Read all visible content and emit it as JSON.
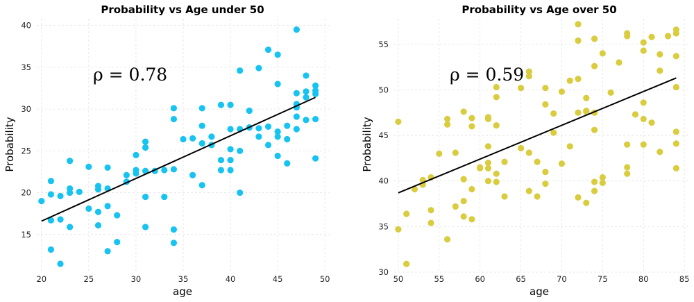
{
  "chart_data": [
    {
      "type": "scatter",
      "title": "Probability vs Age under 50",
      "xlabel": "age",
      "ylabel": "Probability",
      "xlim": [
        19.5,
        50.5
      ],
      "ylim": [
        10.5,
        40.8
      ],
      "xticks": [
        20,
        25,
        30,
        35,
        40,
        45,
        50
      ],
      "yticks": [
        15,
        20,
        25,
        30,
        35,
        40
      ],
      "grid": true,
      "annotation": "ρ = 0.78",
      "point_color": "#17c3f0",
      "trend_line": {
        "x": [
          20,
          49
        ],
        "y": [
          16.6,
          31.4
        ],
        "color": "#000000"
      },
      "x": [
        20,
        21,
        21,
        21,
        21,
        22,
        22,
        22,
        23,
        23,
        23,
        23,
        24,
        25,
        25,
        26,
        26,
        26,
        26,
        27,
        27,
        27,
        27,
        28,
        28,
        29,
        29,
        30,
        30,
        30,
        31,
        31,
        31,
        31,
        31,
        32,
        33,
        33,
        34,
        34,
        34,
        34,
        34,
        35,
        36,
        36,
        37,
        37,
        37,
        37,
        38,
        38,
        39,
        39,
        39,
        40,
        40,
        40,
        40,
        40,
        41,
        41,
        41,
        41,
        42,
        42,
        43,
        43,
        43,
        44,
        44,
        44,
        45,
        45,
        45,
        45,
        45,
        46,
        46,
        46,
        47,
        47,
        47,
        47,
        47,
        47,
        48,
        48,
        48,
        48,
        49,
        49,
        49,
        49,
        49
      ],
      "y": [
        19.0,
        21.4,
        19.8,
        16.7,
        13.2,
        19.6,
        16.8,
        11.5,
        20.5,
        20.0,
        15.9,
        23.8,
        20.1,
        23.1,
        18.1,
        20.8,
        20.4,
        17.7,
        16.1,
        23.0,
        20.5,
        18.4,
        13.0,
        17.3,
        14.1,
        22.1,
        21.3,
        24.5,
        22.7,
        22.3,
        26.1,
        25.4,
        22.6,
        19.5,
        15.9,
        22.6,
        22.7,
        19.5,
        30.1,
        28.8,
        22.8,
        15.6,
        14.0,
        26.4,
        26.5,
        22.1,
        30.1,
        28.0,
        25.9,
        20.9,
        26.7,
        25.7,
        30.5,
        23.9,
        22.7,
        30.5,
        27.6,
        25.2,
        23.9,
        22.7,
        34.6,
        27.6,
        25.0,
        20.0,
        29.8,
        27.8,
        34.9,
        27.7,
        26.7,
        37.1,
        27.9,
        25.7,
        36.5,
        33.0,
        27.3,
        26.7,
        24.4,
        28.0,
        26.4,
        23.5,
        39.5,
        31.9,
        30.6,
        30.2,
        29.1,
        27.6,
        34.0,
        32.1,
        31.4,
        28.7,
        32.8,
        32.2,
        31.8,
        28.8,
        24.1
      ]
    },
    {
      "type": "scatter",
      "title": "Probability vs Age over 50",
      "xlabel": "age",
      "ylabel": "Probability",
      "xlim": [
        49.5,
        85.5
      ],
      "ylim": [
        30.0,
        57.8
      ],
      "xticks": [
        50,
        55,
        60,
        65,
        70,
        75,
        80,
        85
      ],
      "yticks": [
        30,
        35,
        40,
        45,
        50,
        55
      ],
      "grid": true,
      "annotation": "ρ = 0.59",
      "point_color": "#d9cc3f",
      "trend_line": {
        "x": [
          50,
          84
        ],
        "y": [
          38.7,
          51.3
        ],
        "color": "#000000"
      },
      "x": [
        50,
        50,
        51,
        51,
        52,
        53,
        53,
        54,
        54,
        54,
        55,
        56,
        56,
        56,
        57,
        57,
        58,
        58,
        58,
        58,
        59,
        59,
        59,
        59,
        60,
        60,
        61,
        61,
        61,
        61,
        61,
        61,
        62,
        62,
        62,
        62,
        62,
        63,
        63,
        65,
        65,
        66,
        66,
        66,
        66,
        67,
        67,
        68,
        68,
        68,
        68,
        69,
        69,
        70,
        70,
        71,
        71,
        72,
        72,
        72,
        72,
        72,
        73,
        73,
        73,
        73,
        74,
        74,
        74,
        74,
        74,
        74,
        75,
        75,
        75,
        76,
        77,
        78,
        78,
        78,
        78,
        78,
        79,
        80,
        80,
        80,
        80,
        80,
        81,
        81,
        82,
        82,
        82,
        83,
        84,
        84,
        84,
        84,
        84,
        84,
        84
      ],
      "y": [
        46.5,
        34.7,
        36.4,
        30.9,
        39.1,
        40.1,
        39.6,
        40.4,
        36.8,
        35.4,
        43.0,
        46.8,
        46.2,
        33.6,
        43.1,
        37.2,
        47.6,
        40.2,
        37.8,
        36.1,
        46.9,
        46.0,
        39.1,
        35.8,
        41.4,
        41.5,
        47.0,
        46.8,
        43.8,
        42.0,
        41.4,
        40.0,
        50.3,
        49.2,
        46.1,
        40.8,
        39.9,
        42.1,
        38.3,
        50.2,
        43.6,
        52.0,
        51.5,
        43.1,
        38.9,
        42.1,
        38.3,
        50.2,
        48.4,
        41.0,
        39.7,
        47.4,
        45.3,
        49.8,
        41.9,
        51.0,
        43.8,
        57.2,
        55.4,
        51.2,
        47.5,
        38.2,
        49.1,
        47.7,
        47.6,
        37.6,
        55.6,
        52.6,
        47.5,
        45.6,
        39.9,
        38.9,
        54.0,
        40.4,
        39.8,
        49.7,
        53.0,
        56.2,
        55.9,
        44.0,
        41.5,
        40.8,
        47.3,
        55.2,
        54.3,
        48.6,
        46.8,
        44.0,
        55.8,
        46.4,
        53.9,
        52.1,
        43.2,
        55.9,
        56.6,
        56.2,
        53.7,
        50.3,
        45.4,
        44.1,
        41.4
      ]
    }
  ]
}
